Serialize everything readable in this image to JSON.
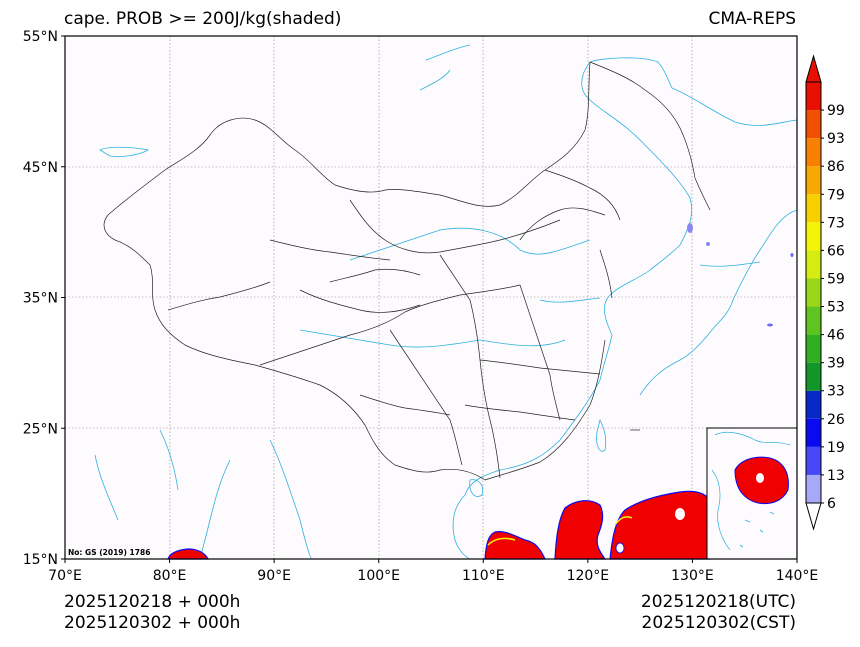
{
  "title": {
    "left": "cape. PROB >= 200J/kg(shaded)",
    "right": "CMA-REPS"
  },
  "axes": {
    "lat_labels": [
      "55°N",
      "45°N",
      "35°N",
      "25°N",
      "15°N"
    ],
    "lon_labels": [
      "70°E",
      "80°E",
      "90°E",
      "100°E",
      "110°E",
      "120°E",
      "130°E",
      "140°E"
    ],
    "lat_range": [
      15,
      55
    ],
    "lon_range": [
      70,
      140
    ]
  },
  "colorbar": {
    "levels": [
      "6",
      "13",
      "19",
      "26",
      "33",
      "39",
      "46",
      "53",
      "59",
      "66",
      "73",
      "79",
      "86",
      "93",
      "99"
    ],
    "colors": [
      "#a8a8f8",
      "#4848f8",
      "#0a0af0",
      "#0828c8",
      "#12962a",
      "#30b020",
      "#60c420",
      "#98d818",
      "#d4ec10",
      "#f4f408",
      "#f8d000",
      "#f8a800",
      "#f88000",
      "#f05000",
      "#e81000"
    ],
    "top_arrow_color": "#e81000",
    "bottom_arrow_color": "#ffffff"
  },
  "map": {
    "background_color": "#fdfbfd",
    "coast_color": "#2fb0e0",
    "border_color": "#222222",
    "shade_color": "#f00000",
    "watermark": "No: GS (2019) 1786"
  },
  "footer": {
    "left_line1": "2025120218  +  000h",
    "left_line2": "2025120302  +  000h",
    "right_line1": "2025120218(UTC)",
    "right_line2": "2025120302(CST)"
  }
}
